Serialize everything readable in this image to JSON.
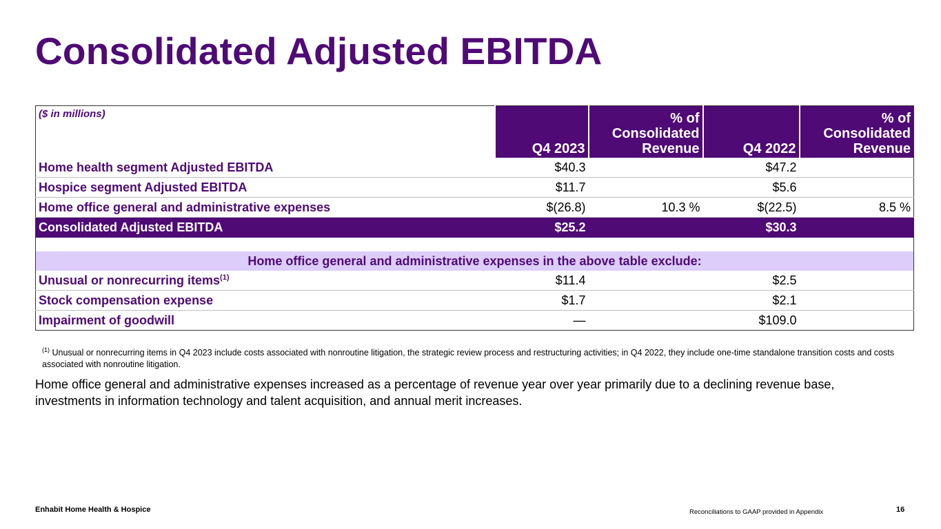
{
  "title": "Consolidated Adjusted EBITDA",
  "table": {
    "unit_label": "($ in millions)",
    "columns": [
      "Q4 2023",
      "% of Consolidated Revenue",
      "Q4 2022",
      "% of Consolidated Revenue"
    ],
    "rows": [
      {
        "label": "Home health segment Adjusted EBITDA",
        "q4_2023": "$40.3",
        "pct_2023": "",
        "q4_2022": "$47.2",
        "pct_2022": ""
      },
      {
        "label": "Hospice segment Adjusted EBITDA",
        "q4_2023": "$11.7",
        "pct_2023": "",
        "q4_2022": "$5.6",
        "pct_2022": ""
      },
      {
        "label": "Home office general and administrative expenses",
        "q4_2023": "$(26.8)",
        "pct_2023": "10.3 %",
        "q4_2022": "$(22.5)",
        "pct_2022": "8.5 %"
      }
    ],
    "total": {
      "label": "Consolidated Adjusted EBITDA",
      "q4_2023": "$25.2",
      "q4_2022": "$30.3"
    },
    "exclude_header": "Home office general and administrative expenses in the above table exclude:",
    "exclude_rows": [
      {
        "label": "Unusual or nonrecurring items",
        "sup": "(1)",
        "q4_2023": "$11.4",
        "q4_2022": "$2.5"
      },
      {
        "label": "Stock compensation expense",
        "sup": "",
        "q4_2023": "$1.7",
        "q4_2022": "$2.1"
      },
      {
        "label": "Impairment of goodwill",
        "sup": "",
        "q4_2023": "—",
        "q4_2022": "$109.0"
      }
    ]
  },
  "footnote": {
    "marker": "(1)",
    "text": "Unusual or nonrecurring items in Q4 2023 include costs associated with nonroutine litigation, the strategic review process and restructuring activities; in Q4 2022, they include one-time standalone transition costs and costs associated with nonroutine litigation."
  },
  "body_text": "Home office general and administrative expenses increased as a percentage of revenue year over year primarily due to a declining revenue base, investments in information technology and talent acquisition, and annual merit increases.",
  "footer": {
    "company": "Enhabit Home Health & Hospice",
    "note": "Reconciliations to GAAP provided in Appendix",
    "page": "16"
  }
}
